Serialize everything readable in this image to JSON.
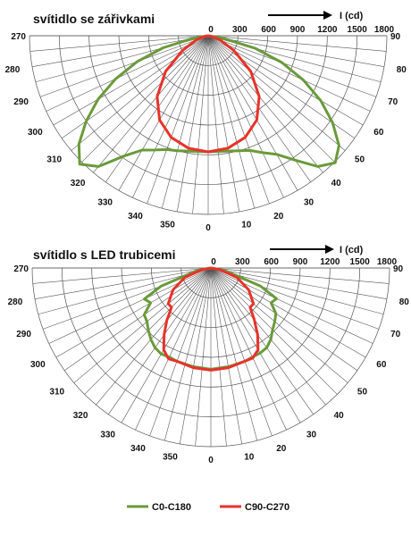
{
  "legend": [
    {
      "name": "C0-C180",
      "color": "#6a9a3a"
    },
    {
      "name": "C90-C270",
      "color": "#e8322a"
    }
  ],
  "chart_data": [
    {
      "type": "polar",
      "title": "svítidlo se zářivkami",
      "unit_label": "I (cd)",
      "radial_range": [
        0,
        1800
      ],
      "radial_ticks": [
        0,
        300,
        600,
        900,
        1200,
        1500,
        1800
      ],
      "angle_ticks_left": [
        "270",
        "280",
        "290",
        "300",
        "310",
        "320",
        "330",
        "340",
        "350",
        "0"
      ],
      "angle_ticks_right": [
        "90",
        "80",
        "70",
        "60",
        "50",
        "40",
        "30",
        "20",
        "10"
      ],
      "series": [
        {
          "name": "C0-C180",
          "color": "#6a9a3a",
          "points": [
            [
              -90,
              0
            ],
            [
              -80,
              160
            ],
            [
              -75,
              470
            ],
            [
              -70,
              760
            ],
            [
              -65,
              1030
            ],
            [
              -60,
              1280
            ],
            [
              -55,
              1500
            ],
            [
              -50,
              1700
            ],
            [
              -45,
              1830
            ],
            [
              -40,
              1720
            ],
            [
              -35,
              1480
            ],
            [
              -30,
              1330
            ],
            [
              -25,
              1270
            ],
            [
              -20,
              1220
            ],
            [
              -15,
              1200
            ],
            [
              -10,
              1180
            ],
            [
              0,
              1170
            ],
            [
              10,
              1180
            ],
            [
              15,
              1200
            ],
            [
              20,
              1230
            ],
            [
              25,
              1300
            ],
            [
              30,
              1380
            ],
            [
              35,
              1530
            ],
            [
              40,
              1720
            ],
            [
              45,
              1810
            ],
            [
              50,
              1720
            ],
            [
              55,
              1530
            ],
            [
              60,
              1310
            ],
            [
              65,
              1060
            ],
            [
              70,
              790
            ],
            [
              75,
              490
            ],
            [
              80,
              160
            ],
            [
              90,
              0
            ]
          ]
        },
        {
          "name": "C90-C270",
          "color": "#e8322a",
          "points": [
            [
              -90,
              0
            ],
            [
              -80,
              40
            ],
            [
              -70,
              130
            ],
            [
              -60,
              300
            ],
            [
              -50,
              560
            ],
            [
              -40,
              800
            ],
            [
              -30,
              980
            ],
            [
              -20,
              1090
            ],
            [
              -10,
              1150
            ],
            [
              0,
              1170
            ],
            [
              10,
              1150
            ],
            [
              20,
              1090
            ],
            [
              30,
              980
            ],
            [
              40,
              800
            ],
            [
              50,
              560
            ],
            [
              60,
              300
            ],
            [
              70,
              130
            ],
            [
              80,
              40
            ],
            [
              90,
              0
            ]
          ]
        }
      ]
    },
    {
      "type": "polar",
      "title": "svítidlo s LED trubicemi",
      "unit_label": "I (cd)",
      "radial_range": [
        0,
        1800
      ],
      "radial_ticks": [
        0,
        300,
        600,
        900,
        1200,
        1500,
        1800
      ],
      "angle_ticks_left": [
        "270",
        "280",
        "290",
        "300",
        "310",
        "320",
        "330",
        "340",
        "350",
        "0"
      ],
      "angle_ticks_right": [
        "90",
        "80",
        "70",
        "60",
        "50",
        "40",
        "30",
        "20",
        "10"
      ],
      "series": [
        {
          "name": "C0-C180",
          "color": "#6a9a3a",
          "points": [
            [
              -90,
              0
            ],
            [
              -80,
              140
            ],
            [
              -70,
              530
            ],
            [
              -65,
              740
            ],
            [
              -60,
              700
            ],
            [
              -55,
              820
            ],
            [
              -50,
              840
            ],
            [
              -45,
              890
            ],
            [
              -40,
              940
            ],
            [
              -35,
              980
            ],
            [
              -30,
              1000
            ],
            [
              -25,
              990
            ],
            [
              -20,
              1000
            ],
            [
              -10,
              1010
            ],
            [
              0,
              1020
            ],
            [
              10,
              1010
            ],
            [
              20,
              1000
            ],
            [
              25,
              990
            ],
            [
              30,
              990
            ],
            [
              35,
              980
            ],
            [
              40,
              940
            ],
            [
              45,
              880
            ],
            [
              50,
              840
            ],
            [
              55,
              800
            ],
            [
              60,
              700
            ],
            [
              65,
              730
            ],
            [
              70,
              530
            ],
            [
              80,
              140
            ],
            [
              90,
              0
            ]
          ]
        },
        {
          "name": "C90-C270",
          "color": "#e8322a",
          "points": [
            [
              -90,
              0
            ],
            [
              -80,
              90
            ],
            [
              -70,
              280
            ],
            [
              -60,
              440
            ],
            [
              -50,
              560
            ],
            [
              -45,
              560
            ],
            [
              -40,
              690
            ],
            [
              -35,
              820
            ],
            [
              -30,
              950
            ],
            [
              -25,
              1010
            ],
            [
              -20,
              1000
            ],
            [
              -10,
              1020
            ],
            [
              0,
              1030
            ],
            [
              10,
              1020
            ],
            [
              20,
              1000
            ],
            [
              25,
              1000
            ],
            [
              30,
              950
            ],
            [
              35,
              820
            ],
            [
              40,
              680
            ],
            [
              45,
              560
            ],
            [
              50,
              560
            ],
            [
              60,
              440
            ],
            [
              70,
              280
            ],
            [
              80,
              90
            ],
            [
              90,
              0
            ]
          ]
        }
      ]
    }
  ]
}
